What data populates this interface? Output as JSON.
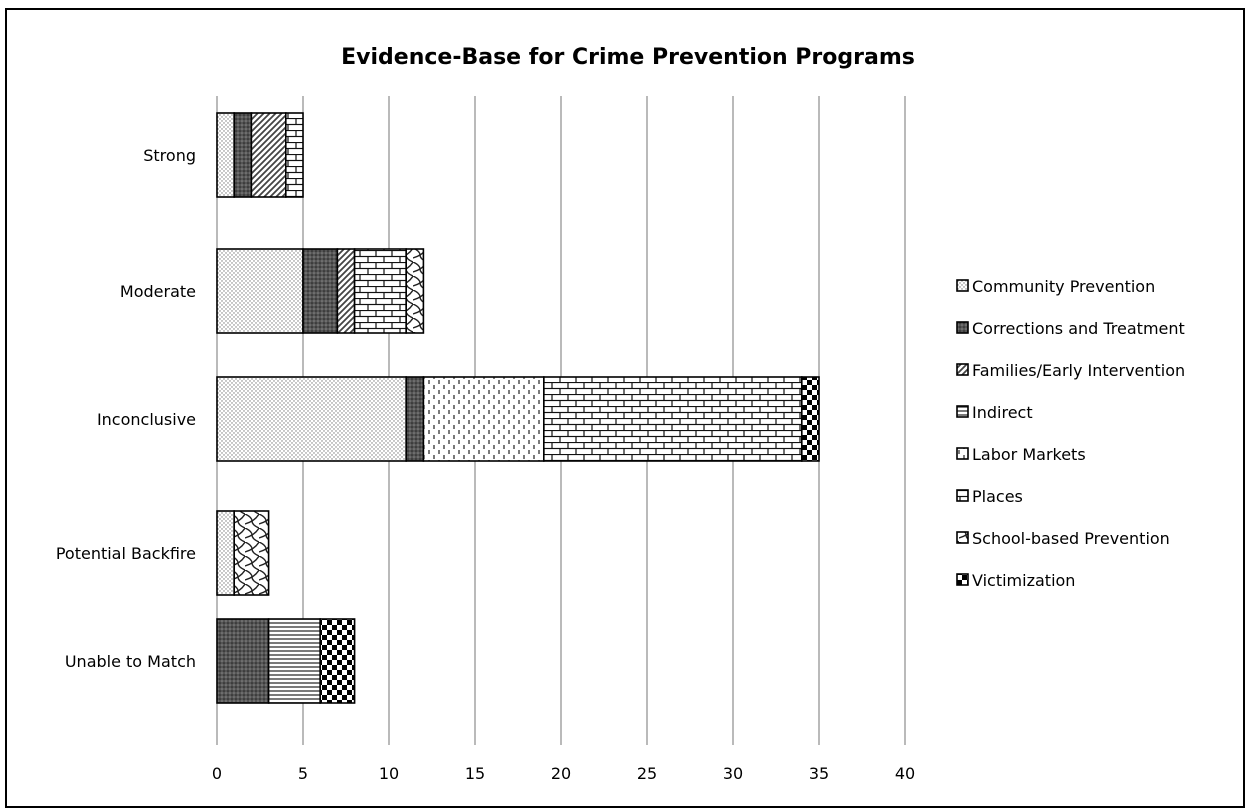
{
  "chart_data": {
    "type": "bar",
    "orientation": "horizontal",
    "stacked": true,
    "title": "Evidence-Base for Crime Prevention Programs",
    "xlabel": "",
    "ylabel": "",
    "xlim": [
      0,
      40
    ],
    "x_ticks": [
      0,
      5,
      10,
      15,
      20,
      25,
      30,
      35,
      40
    ],
    "grid": "vertical",
    "legend_position": "right",
    "categories": [
      "Strong",
      "Moderate",
      "Inconclusive",
      "Potential Backfire",
      "Unable to Match"
    ],
    "series": [
      {
        "name": "Community Prevention",
        "pattern": "dots",
        "values": [
          1,
          5,
          11,
          1,
          0
        ]
      },
      {
        "name": "Corrections and Treatment",
        "pattern": "dark-dots",
        "values": [
          1,
          2,
          1,
          0,
          3
        ]
      },
      {
        "name": "Families/Early Intervention",
        "pattern": "diagonal",
        "values": [
          2,
          1,
          0,
          0,
          0
        ]
      },
      {
        "name": "Indirect",
        "pattern": "horizontal",
        "values": [
          0,
          0,
          0,
          0,
          3
        ]
      },
      {
        "name": "Labor Markets",
        "pattern": "vertical-dashes",
        "values": [
          0,
          0,
          7,
          0,
          0
        ]
      },
      {
        "name": "Places",
        "pattern": "bricks",
        "values": [
          1,
          3,
          15,
          0,
          0
        ]
      },
      {
        "name": "School-based Prevention",
        "pattern": "weave",
        "values": [
          0,
          1,
          0,
          2,
          0
        ]
      },
      {
        "name": "Victimization",
        "pattern": "checker",
        "values": [
          0,
          0,
          1,
          0,
          2
        ]
      }
    ]
  }
}
